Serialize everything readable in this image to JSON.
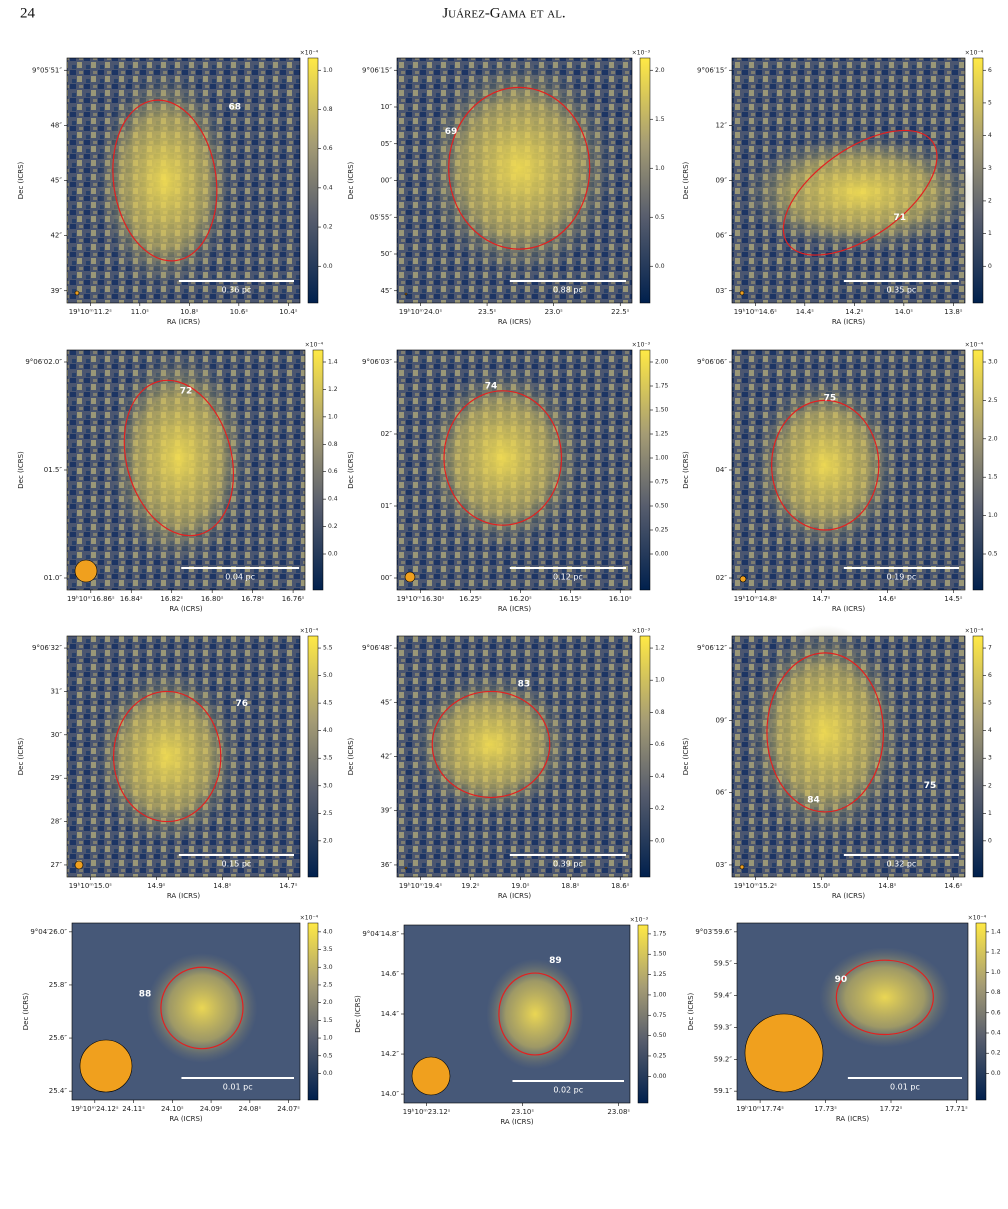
{
  "header": {
    "page": "24",
    "running_title": "Juárez-Gama et al."
  },
  "panels": [
    {
      "labels": [
        "68"
      ],
      "scale_bar": "0.36 pc",
      "x_label": "RA (ICRS)",
      "y_label": "Dec (ICRS)",
      "colorbar_exponent": "×10⁻⁴",
      "yticks": [
        "9°05′51″",
        "48″",
        "45″",
        "42″",
        "39″"
      ],
      "xticks": [
        "19ʰ10ᵐ11.2ˢ",
        "11.0ˢ",
        "10.8ˢ",
        "10.6ˢ",
        "10.4ˢ"
      ],
      "colorbar_ticks": [
        "1.0",
        "0.8",
        "0.6",
        "0.4",
        "0.2",
        "0.0"
      ]
    },
    {
      "labels": [
        "69"
      ],
      "scale_bar": "0.88 pc",
      "x_label": "RA (ICRS)",
      "y_label": "Dec (ICRS)",
      "colorbar_exponent": "×10⁻³",
      "yticks": [
        "9°06′15″",
        "10″",
        "05″",
        "00″",
        "05′55″",
        "50″",
        "45″"
      ],
      "xticks": [
        "19ʰ10ᵐ24.0ˢ",
        "23.5ˢ",
        "23.0ˢ",
        "22.5ˢ"
      ],
      "colorbar_ticks": [
        "2.0",
        "1.5",
        "1.0",
        "0.5",
        "0.0"
      ]
    },
    {
      "labels": [
        "71"
      ],
      "scale_bar": "0.35 pc",
      "x_label": "RA (ICRS)",
      "y_label": "Dec (ICRS)",
      "colorbar_exponent": "×10⁻⁴",
      "yticks": [
        "9°06′15″",
        "12″",
        "09″",
        "06″",
        "03″"
      ],
      "xticks": [
        "19ʰ10ᵐ14.6ˢ",
        "14.4ˢ",
        "14.2ˢ",
        "14.0ˢ",
        "13.8ˢ"
      ],
      "colorbar_ticks": [
        "6",
        "5",
        "4",
        "3",
        "2",
        "1",
        "0"
      ]
    },
    {
      "labels": [
        "72"
      ],
      "scale_bar": "0.04 pc",
      "x_label": "RA (ICRS)",
      "y_label": "Dec (ICRS)",
      "colorbar_exponent": "×10⁻⁴",
      "yticks": [
        "9°06′02.0″",
        "01.5″",
        "01.0″"
      ],
      "xticks": [
        "19ʰ10ᵐ16.86ˢ",
        "16.84ˢ",
        "16.82ˢ",
        "16.80ˢ",
        "16.78ˢ",
        "16.76ˢ"
      ],
      "colorbar_ticks": [
        "1.4",
        "1.2",
        "1.0",
        "0.8",
        "0.6",
        "0.4",
        "0.2",
        "0.0"
      ]
    },
    {
      "labels": [
        "74"
      ],
      "scale_bar": "0.12 pc",
      "x_label": "RA (ICRS)",
      "y_label": "Dec (ICRS)",
      "colorbar_exponent": "×10⁻³",
      "yticks": [
        "9°06′03″",
        "02″",
        "01″",
        "00″"
      ],
      "xticks": [
        "19ʰ10ᵐ16.30ˢ",
        "16.25ˢ",
        "16.20ˢ",
        "16.15ˢ",
        "16.10ˢ"
      ],
      "colorbar_ticks": [
        "2.00",
        "1.75",
        "1.50",
        "1.25",
        "1.00",
        "0.75",
        "0.50",
        "0.25",
        "0.00"
      ]
    },
    {
      "labels": [
        "75"
      ],
      "scale_bar": "0.19 pc",
      "x_label": "RA (ICRS)",
      "y_label": "Dec (ICRS)",
      "colorbar_exponent": "×10⁻⁴",
      "yticks": [
        "9°06′06″",
        "04″",
        "02″"
      ],
      "xticks": [
        "19ʰ10ᵐ14.8ˢ",
        "14.7ˢ",
        "14.6ˢ",
        "14.5ˢ"
      ],
      "colorbar_ticks": [
        "3.0",
        "2.5",
        "2.0",
        "1.5",
        "1.0",
        "0.5"
      ]
    },
    {
      "labels": [
        "76"
      ],
      "scale_bar": "0.15 pc",
      "x_label": "RA (ICRS)",
      "y_label": "Dec (ICRS)",
      "colorbar_exponent": "×10⁻⁴",
      "yticks": [
        "9°06′32″",
        "31″",
        "30″",
        "29″",
        "28″",
        "27″"
      ],
      "xticks": [
        "19ʰ10ᵐ15.0ˢ",
        "14.9ˢ",
        "14.8ˢ",
        "14.7ˢ"
      ],
      "colorbar_ticks": [
        "5.5",
        "5.0",
        "4.5",
        "4.0",
        "3.5",
        "3.0",
        "2.5",
        "2.0"
      ]
    },
    {
      "labels": [
        "83"
      ],
      "scale_bar": "0.39 pc",
      "x_label": "RA (ICRS)",
      "y_label": "Dec (ICRS)",
      "colorbar_exponent": "×10⁻³",
      "yticks": [
        "9°06′48″",
        "45″",
        "42″",
        "39″",
        "36″"
      ],
      "xticks": [
        "19ʰ10ᵐ19.4ˢ",
        "19.2ˢ",
        "19.0ˢ",
        "18.8ˢ",
        "18.6ˢ"
      ],
      "colorbar_ticks": [
        "1.2",
        "1.0",
        "0.8",
        "0.6",
        "0.4",
        "0.2",
        "0.0"
      ]
    },
    {
      "labels": [
        "84",
        "75"
      ],
      "scale_bar": "0.32 pc",
      "x_label": "RA (ICRS)",
      "y_label": "Dec (ICRS)",
      "colorbar_exponent": "×10⁻⁴",
      "yticks": [
        "9°06′12″",
        "09″",
        "06″",
        "03″"
      ],
      "xticks": [
        "19ʰ10ᵐ15.2ˢ",
        "15.0ˢ",
        "14.8ˢ",
        "14.6ˢ"
      ],
      "colorbar_ticks": [
        "7",
        "6",
        "5",
        "4",
        "3",
        "2",
        "1",
        "0"
      ]
    },
    {
      "labels": [
        "88"
      ],
      "scale_bar": "0.01 pc",
      "x_label": "RA (ICRS)",
      "y_label": "Dec (ICRS)",
      "colorbar_exponent": "×10⁻⁴",
      "yticks": [
        "9°04′26.0″",
        "25.8″",
        "25.6″",
        "25.4″"
      ],
      "xticks": [
        "19ʰ10ᵐ24.12ˢ",
        "24.11ˢ",
        "24.10ˢ",
        "24.09ˢ",
        "24.08ˢ",
        "24.07ˢ"
      ],
      "colorbar_ticks": [
        "4.0",
        "3.5",
        "3.0",
        "2.5",
        "2.0",
        "1.5",
        "1.0",
        "0.5",
        "0.0"
      ]
    },
    {
      "labels": [
        "89"
      ],
      "scale_bar": "0.02 pc",
      "x_label": "RA (ICRS)",
      "y_label": "Dec (ICRS)",
      "colorbar_exponent": "×10⁻³",
      "yticks": [
        "9°04′14.8″",
        "14.6″",
        "14.4″",
        "14.2″",
        "14.0″"
      ],
      "xticks": [
        "19ʰ10ᵐ23.12ˢ",
        "23.10ˢ",
        "23.08ˢ"
      ],
      "colorbar_ticks": [
        "1.75",
        "1.50",
        "1.25",
        "1.00",
        "0.75",
        "0.50",
        "0.25",
        "0.00"
      ]
    },
    {
      "labels": [
        "90"
      ],
      "scale_bar": "0.01 pc",
      "x_label": "RA (ICRS)",
      "y_label": "Dec (ICRS)",
      "colorbar_exponent": "×10⁻⁴",
      "yticks": [
        "9°03′59.6″",
        "59.5″",
        "59.4″",
        "59.3″",
        "59.2″",
        "59.1″"
      ],
      "xticks": [
        "19ʰ10ᵐ17.74ˢ",
        "17.73ˢ",
        "17.72ˢ",
        "17.71ˢ"
      ],
      "colorbar_ticks": [
        "1.4",
        "1.2",
        "1.0",
        "0.8",
        "0.6",
        "0.4",
        "0.2",
        "0.0"
      ]
    }
  ]
}
